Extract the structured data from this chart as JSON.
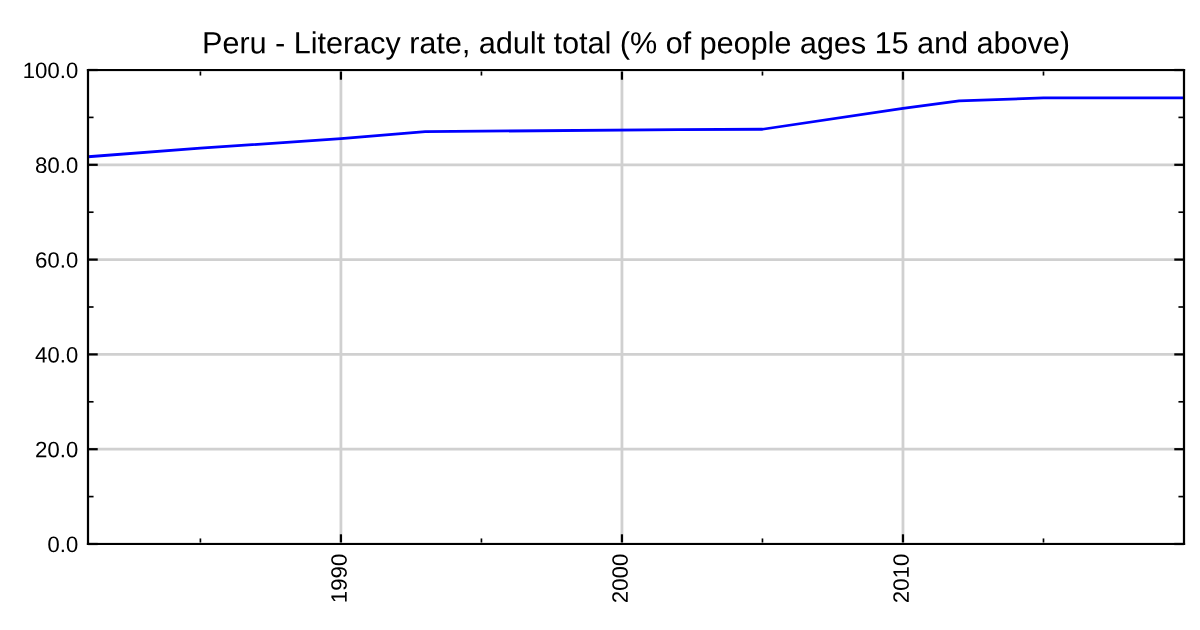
{
  "chart_data": {
    "type": "line",
    "title": "Peru - Literacy rate, adult total (% of people ages 15 and above)",
    "series": [
      {
        "color": "#0000ff",
        "x": [
          1981,
          1985,
          1990,
          1993,
          2002,
          2005,
          2010,
          2012,
          2015,
          2020
        ],
        "values": [
          81.7,
          83.5,
          85.5,
          87.0,
          87.4,
          87.5,
          91.9,
          93.5,
          94.1,
          94.1
        ]
      }
    ],
    "xlim": [
      1981,
      2020
    ],
    "xticks": [
      1990,
      2000,
      2010
    ],
    "ylim": [
      0,
      100
    ],
    "yticks": [
      {
        "value": 0,
        "label": "0.0"
      },
      {
        "value": 20,
        "label": "20.0"
      },
      {
        "value": 40,
        "label": "40.0"
      },
      {
        "value": 60,
        "label": "60.0"
      },
      {
        "value": 80,
        "label": "80.0"
      },
      {
        "value": 100,
        "label": "100.0"
      }
    ],
    "grid": true,
    "marker": "none",
    "line_style": "solid"
  }
}
